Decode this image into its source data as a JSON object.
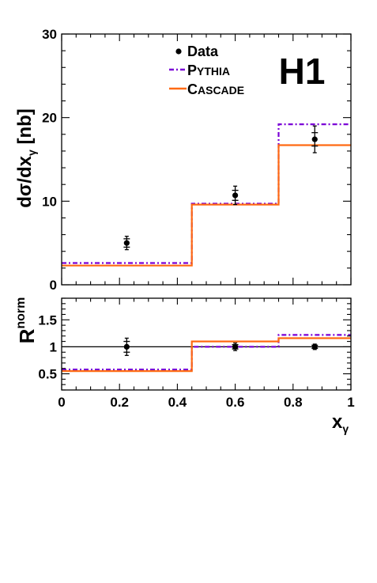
{
  "experiment_label": "H1",
  "chart_data": [
    {
      "type": "line",
      "panel": "top",
      "ylabel_main": "dσ/dx",
      "ylabel_sub": "γ",
      "ylabel_unit": " [nb]",
      "xlim": [
        0,
        1
      ],
      "ylim": [
        0,
        30
      ],
      "yticks": [
        {
          "value": 0,
          "label": "0"
        },
        {
          "value": 10,
          "label": "10"
        },
        {
          "value": 20,
          "label": "20"
        },
        {
          "value": 30,
          "label": "30"
        }
      ],
      "bin_edges": [
        0,
        0.45,
        0.75,
        1.0
      ],
      "legend": [
        {
          "key": "data",
          "label": "Data",
          "small_caps": false
        },
        {
          "key": "pythia",
          "label": "Pythia",
          "small_caps": true
        },
        {
          "key": "cascade",
          "label": "Cascade",
          "small_caps": true
        }
      ],
      "series": [
        {
          "key": "pythia",
          "name": "Pythia",
          "style": "step",
          "color": "#7a00d6",
          "dash": "dashdot",
          "values": [
            2.6,
            9.7,
            19.2
          ]
        },
        {
          "key": "cascade",
          "name": "Cascade",
          "style": "step",
          "color": "#ff6a13",
          "dash": "solid",
          "values": [
            2.3,
            9.6,
            16.7
          ]
        },
        {
          "key": "data",
          "name": "Data",
          "style": "points",
          "color": "#000000",
          "points": [
            {
              "x": 0.225,
              "y": 5.0,
              "err_inner": 0.5,
              "err_outer": 0.8
            },
            {
              "x": 0.6,
              "y": 10.7,
              "err_inner": 0.6,
              "err_outer": 1.1
            },
            {
              "x": 0.875,
              "y": 17.4,
              "err_inner": 0.8,
              "err_outer": 1.6
            }
          ]
        }
      ]
    },
    {
      "type": "line",
      "panel": "bottom",
      "ylabel_main": "R",
      "ylabel_sup": "norm",
      "xlabel_main": "x",
      "xlabel_sub": "γ",
      "xlim": [
        0,
        1
      ],
      "ylim": [
        0.2,
        1.9
      ],
      "xticks": [
        {
          "value": 0,
          "label": "0"
        },
        {
          "value": 0.2,
          "label": "0.2"
        },
        {
          "value": 0.4,
          "label": "0.4"
        },
        {
          "value": 0.6,
          "label": "0.6"
        },
        {
          "value": 0.8,
          "label": "0.8"
        },
        {
          "value": 1,
          "label": "1"
        }
      ],
      "yticks": [
        {
          "value": 0.5,
          "label": "0.5"
        },
        {
          "value": 1,
          "label": "1"
        },
        {
          "value": 1.5,
          "label": "1.5"
        }
      ],
      "reference_line": 1.0,
      "bin_edges": [
        0,
        0.45,
        0.75,
        1.0
      ],
      "series": [
        {
          "key": "pythia",
          "name": "Pythia",
          "style": "step",
          "color": "#7a00d6",
          "dash": "dashdot",
          "values": [
            0.58,
            1.0,
            1.22
          ]
        },
        {
          "key": "cascade",
          "name": "Cascade",
          "style": "step",
          "color": "#ff6a13",
          "dash": "solid",
          "values": [
            0.55,
            1.1,
            1.16
          ]
        },
        {
          "key": "data",
          "name": "Data",
          "style": "points",
          "color": "#000000",
          "points": [
            {
              "x": 0.225,
              "y": 1.0,
              "err_inner": 0.1,
              "err_outer": 0.16
            },
            {
              "x": 0.6,
              "y": 1.0,
              "err_inner": 0.04,
              "err_outer": 0.07
            },
            {
              "x": 0.875,
              "y": 1.0,
              "err_inner": 0.03,
              "err_outer": 0.05
            }
          ]
        }
      ]
    }
  ]
}
